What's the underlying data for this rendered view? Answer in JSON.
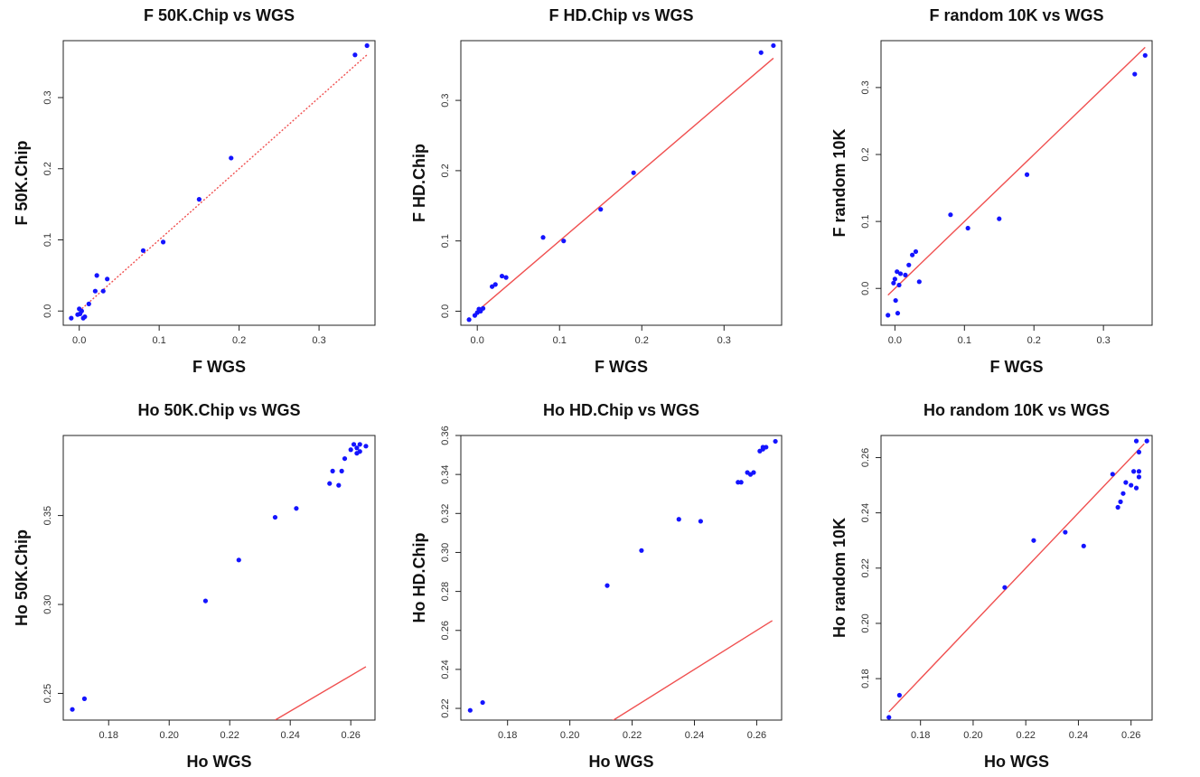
{
  "colors": {
    "points": "#1414ff",
    "fit_line": "#f05050",
    "frame": "#222222"
  },
  "chart_data": [
    {
      "type": "scatter",
      "title": "F 50K.Chip vs WGS",
      "xlabel": "F WGS",
      "ylabel": "F 50K.Chip",
      "xlim": [
        -0.02,
        0.37
      ],
      "ylim": [
        -0.02,
        0.38
      ],
      "xticks": [
        0,
        0.1,
        0.2,
        0.3
      ],
      "xtick_labels": [
        "0.0",
        "0.1",
        "0.2",
        "0.3"
      ],
      "yticks": [
        0,
        0.1,
        0.2,
        0.3
      ],
      "ytick_labels": [
        "0.0",
        "0.1",
        "0.2",
        "0.3"
      ],
      "line": {
        "style": "dotted",
        "from": [
          0.0,
          0.0
        ],
        "to": [
          0.36,
          0.36
        ]
      },
      "points": [
        [
          -0.01,
          -0.01
        ],
        [
          -0.002,
          -0.005
        ],
        [
          0.0,
          0.003
        ],
        [
          0.001,
          -0.004
        ],
        [
          0.003,
          0.0
        ],
        [
          0.005,
          -0.01
        ],
        [
          0.007,
          -0.008
        ],
        [
          0.012,
          0.01
        ],
        [
          0.02,
          0.028
        ],
        [
          0.022,
          0.05
        ],
        [
          0.03,
          0.028
        ],
        [
          0.035,
          0.045
        ],
        [
          0.08,
          0.085
        ],
        [
          0.105,
          0.097
        ],
        [
          0.15,
          0.157
        ],
        [
          0.19,
          0.215
        ],
        [
          0.345,
          0.36
        ],
        [
          0.36,
          0.373
        ]
      ],
      "grid": false
    },
    {
      "type": "scatter",
      "title": "F HD.Chip vs WGS",
      "xlabel": "F WGS",
      "ylabel": "F HD.Chip",
      "xlim": [
        -0.02,
        0.37
      ],
      "ylim": [
        -0.02,
        0.385
      ],
      "xticks": [
        0,
        0.1,
        0.2,
        0.3
      ],
      "xtick_labels": [
        "0.0",
        "0.1",
        "0.2",
        "0.3"
      ],
      "yticks": [
        0,
        0.1,
        0.2,
        0.3
      ],
      "ytick_labels": [
        "0.0",
        "0.1",
        "0.2",
        "0.3"
      ],
      "line": {
        "style": "solid",
        "from": [
          0.0,
          0.0
        ],
        "to": [
          0.36,
          0.36
        ]
      },
      "points": [
        [
          -0.01,
          -0.012
        ],
        [
          -0.003,
          -0.006
        ],
        [
          0.0,
          -0.002
        ],
        [
          0.002,
          0.003
        ],
        [
          0.004,
          0.0
        ],
        [
          0.007,
          0.004
        ],
        [
          0.018,
          0.035
        ],
        [
          0.022,
          0.038
        ],
        [
          0.03,
          0.05
        ],
        [
          0.035,
          0.048
        ],
        [
          0.08,
          0.105
        ],
        [
          0.105,
          0.1
        ],
        [
          0.15,
          0.145
        ],
        [
          0.19,
          0.197
        ],
        [
          0.345,
          0.368
        ],
        [
          0.36,
          0.378
        ]
      ],
      "grid": false
    },
    {
      "type": "scatter",
      "title": "F random 10K vs WGS",
      "xlabel": "F WGS",
      "ylabel": "F random 10K",
      "xlim": [
        -0.02,
        0.37
      ],
      "ylim": [
        -0.055,
        0.37
      ],
      "xticks": [
        0,
        0.1,
        0.2,
        0.3
      ],
      "xtick_labels": [
        "0.0",
        "0.1",
        "0.2",
        "0.3"
      ],
      "yticks": [
        0,
        0.1,
        0.2,
        0.3
      ],
      "ytick_labels": [
        "0.0",
        "0.1",
        "0.2",
        "0.3"
      ],
      "line": {
        "style": "solid",
        "from": [
          -0.01,
          -0.01
        ],
        "to": [
          0.36,
          0.36
        ]
      },
      "points": [
        [
          -0.01,
          -0.04
        ],
        [
          -0.002,
          0.008
        ],
        [
          0.0,
          0.014
        ],
        [
          0.001,
          -0.018
        ],
        [
          0.003,
          0.025
        ],
        [
          0.004,
          -0.037
        ],
        [
          0.006,
          0.005
        ],
        [
          0.008,
          0.022
        ],
        [
          0.015,
          0.02
        ],
        [
          0.02,
          0.035
        ],
        [
          0.025,
          0.05
        ],
        [
          0.03,
          0.055
        ],
        [
          0.035,
          0.01
        ],
        [
          0.08,
          0.11
        ],
        [
          0.105,
          0.09
        ],
        [
          0.15,
          0.104
        ],
        [
          0.19,
          0.17
        ],
        [
          0.345,
          0.32
        ],
        [
          0.36,
          0.348
        ]
      ],
      "grid": false
    },
    {
      "type": "scatter",
      "title": "Ho 50K.Chip vs WGS",
      "xlabel": "Ho WGS",
      "ylabel": "Ho 50K.Chip",
      "xlim": [
        0.165,
        0.268
      ],
      "ylim": [
        0.235,
        0.395
      ],
      "xticks": [
        0.18,
        0.2,
        0.22,
        0.24,
        0.26
      ],
      "xtick_labels": [
        "0.18",
        "0.20",
        "0.22",
        "0.24",
        "0.26"
      ],
      "yticks": [
        0.25,
        0.3,
        0.35
      ],
      "ytick_labels": [
        "0.25",
        "0.30",
        "0.35"
      ],
      "line": {
        "style": "solid",
        "from": [
          0.235,
          0.235
        ],
        "to": [
          0.265,
          0.265
        ]
      },
      "points": [
        [
          0.168,
          0.241
        ],
        [
          0.172,
          0.247
        ],
        [
          0.212,
          0.302
        ],
        [
          0.223,
          0.325
        ],
        [
          0.235,
          0.349
        ],
        [
          0.242,
          0.354
        ],
        [
          0.253,
          0.368
        ],
        [
          0.254,
          0.375
        ],
        [
          0.256,
          0.367
        ],
        [
          0.257,
          0.375
        ],
        [
          0.258,
          0.382
        ],
        [
          0.26,
          0.387
        ],
        [
          0.261,
          0.39
        ],
        [
          0.262,
          0.385
        ],
        [
          0.262,
          0.388
        ],
        [
          0.263,
          0.386
        ],
        [
          0.263,
          0.39
        ],
        [
          0.265,
          0.389
        ]
      ],
      "grid": false
    },
    {
      "type": "scatter",
      "title": "Ho HD.Chip vs WGS",
      "xlabel": "Ho WGS",
      "ylabel": "Ho HD.Chip",
      "xlim": [
        0.165,
        0.268
      ],
      "ylim": [
        0.214,
        0.36
      ],
      "xticks": [
        0.18,
        0.2,
        0.22,
        0.24,
        0.26
      ],
      "xtick_labels": [
        "0.18",
        "0.20",
        "0.22",
        "0.24",
        "0.26"
      ],
      "yticks": [
        0.22,
        0.24,
        0.26,
        0.28,
        0.3,
        0.32,
        0.34,
        0.36
      ],
      "ytick_labels": [
        "0.22",
        "0.24",
        "0.26",
        "0.28",
        "0.30",
        "0.32",
        "0.34",
        "0.36"
      ],
      "line": {
        "style": "solid",
        "from": [
          0.213,
          0.213
        ],
        "to": [
          0.265,
          0.265
        ]
      },
      "points": [
        [
          0.168,
          0.219
        ],
        [
          0.172,
          0.223
        ],
        [
          0.212,
          0.283
        ],
        [
          0.223,
          0.301
        ],
        [
          0.235,
          0.317
        ],
        [
          0.242,
          0.316
        ],
        [
          0.254,
          0.336
        ],
        [
          0.255,
          0.336
        ],
        [
          0.257,
          0.341
        ],
        [
          0.258,
          0.34
        ],
        [
          0.259,
          0.341
        ],
        [
          0.261,
          0.352
        ],
        [
          0.262,
          0.353
        ],
        [
          0.262,
          0.354
        ],
        [
          0.263,
          0.354
        ],
        [
          0.266,
          0.357
        ]
      ],
      "grid": false
    },
    {
      "type": "scatter",
      "title": "Ho random 10K vs WGS",
      "xlabel": "Ho WGS",
      "ylabel": "Ho random 10K",
      "xlim": [
        0.165,
        0.268
      ],
      "ylim": [
        0.165,
        0.268
      ],
      "xticks": [
        0.18,
        0.2,
        0.22,
        0.24,
        0.26
      ],
      "xtick_labels": [
        "0.18",
        "0.20",
        "0.22",
        "0.24",
        "0.26"
      ],
      "yticks": [
        0.18,
        0.2,
        0.22,
        0.24,
        0.26
      ],
      "ytick_labels": [
        "0.18",
        "0.20",
        "0.22",
        "0.24",
        "0.26"
      ],
      "line": {
        "style": "solid",
        "from": [
          0.168,
          0.168
        ],
        "to": [
          0.265,
          0.265
        ]
      },
      "points": [
        [
          0.168,
          0.166
        ],
        [
          0.172,
          0.174
        ],
        [
          0.212,
          0.213
        ],
        [
          0.223,
          0.23
        ],
        [
          0.235,
          0.233
        ],
        [
          0.242,
          0.228
        ],
        [
          0.253,
          0.254
        ],
        [
          0.255,
          0.242
        ],
        [
          0.256,
          0.244
        ],
        [
          0.257,
          0.247
        ],
        [
          0.258,
          0.251
        ],
        [
          0.26,
          0.25
        ],
        [
          0.261,
          0.255
        ],
        [
          0.262,
          0.249
        ],
        [
          0.262,
          0.266
        ],
        [
          0.263,
          0.262
        ],
        [
          0.263,
          0.255
        ],
        [
          0.263,
          0.253
        ],
        [
          0.266,
          0.266
        ]
      ],
      "grid": false
    }
  ]
}
